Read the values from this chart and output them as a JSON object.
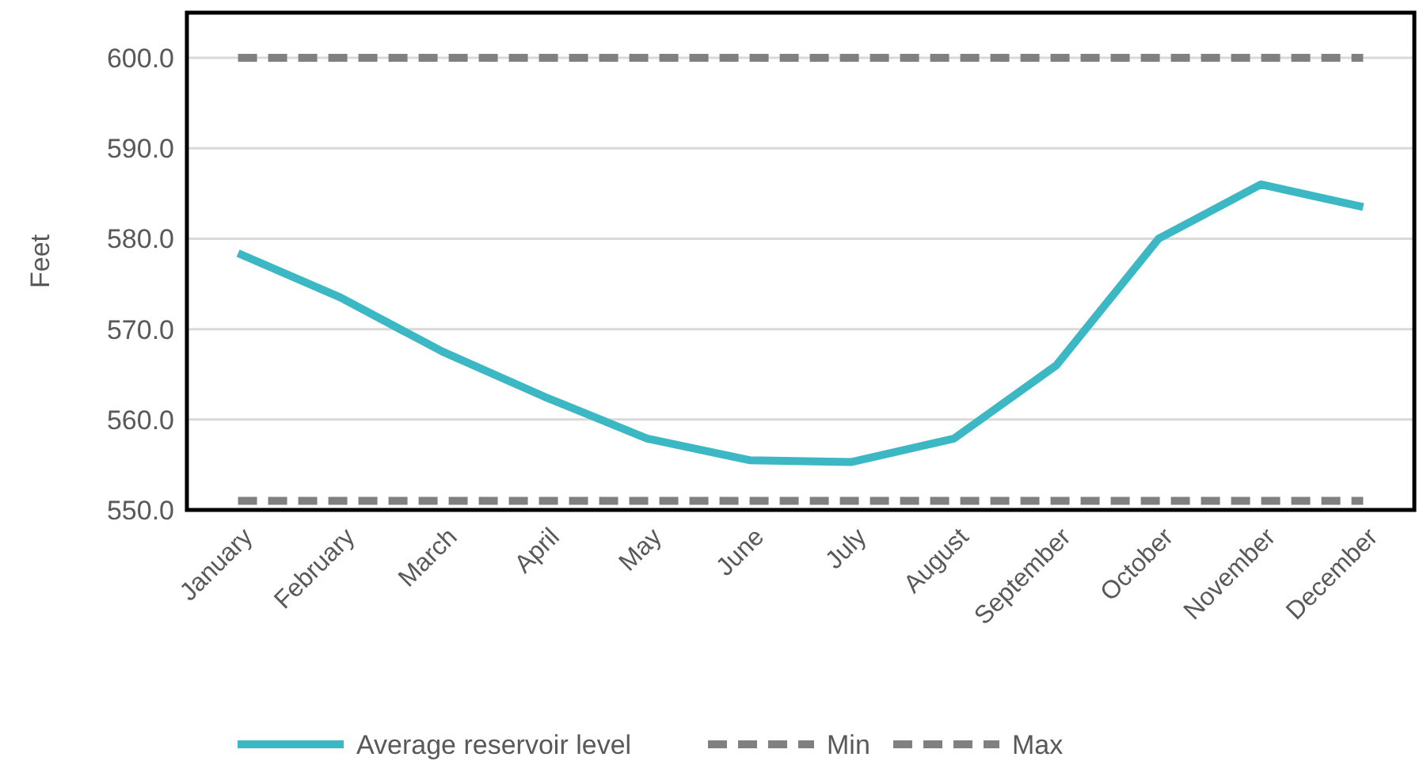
{
  "chart_data": {
    "type": "line",
    "ylabel": "Feet",
    "categories": [
      "January",
      "February",
      "March",
      "April",
      "May",
      "June",
      "July",
      "August",
      "September",
      "October",
      "November",
      "December"
    ],
    "series": [
      {
        "name": "Average reservoir level",
        "color": "#3cb8c4",
        "values": [
          578.4,
          573.5,
          567.5,
          562.5,
          557.9,
          555.5,
          555.3,
          557.9,
          566,
          580,
          586,
          583.5
        ]
      },
      {
        "name": "Min",
        "color": "#808080",
        "line_style": "dashed",
        "values": [
          551,
          551,
          551,
          551,
          551,
          551,
          551,
          551,
          551,
          551,
          551,
          551
        ]
      },
      {
        "name": "Max",
        "color": "#808080",
        "line_style": "dashed",
        "values": [
          600,
          600,
          600,
          600,
          600,
          600,
          600,
          600,
          600,
          600,
          600,
          600
        ]
      }
    ],
    "ylim": [
      550,
      605
    ],
    "yticks": [
      {
        "value": 550,
        "label": "550.0"
      },
      {
        "value": 560,
        "label": "560.0"
      },
      {
        "value": 570,
        "label": "570.0"
      },
      {
        "value": 580,
        "label": "580.0"
      },
      {
        "value": 590,
        "label": "590.0"
      },
      {
        "value": 600,
        "label": "600.0"
      }
    ],
    "grid": "y",
    "legend": "bottom",
    "marker": "none",
    "line_style": "solid"
  }
}
